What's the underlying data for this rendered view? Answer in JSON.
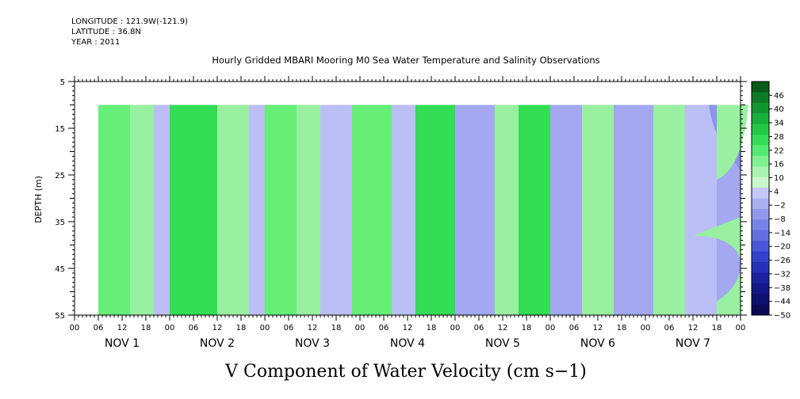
{
  "header": {
    "longitude": "LONGITUDE : 121.9W(-121.9)",
    "latitude": "LATITUDE : 36.8N",
    "year": "YEAR : 2011"
  },
  "chart_data": {
    "type": "heatmap",
    "title": "Hourly Gridded MBARI Mooring M0 Sea Water Temperature and Salinity Observations",
    "xlabel": "V Component of Water Velocity (cm s−1)",
    "ylabel": "DEPTH (m)",
    "y_ticks": [
      5,
      15,
      25,
      35,
      45,
      55
    ],
    "y_range": [
      5,
      55
    ],
    "data_depth_range": [
      10,
      55
    ],
    "x_hour_ticks": [
      "00",
      "06",
      "12",
      "18",
      "00",
      "06",
      "12",
      "18",
      "00",
      "06",
      "12",
      "18",
      "00",
      "06",
      "12",
      "18",
      "00",
      "06",
      "12",
      "18",
      "00",
      "06",
      "12",
      "18",
      "00",
      "06",
      "12",
      "18",
      "00"
    ],
    "x_day_labels": [
      "NOV 1",
      "NOV 2",
      "NOV 3",
      "NOV 4",
      "NOV 5",
      "NOV 6",
      "NOV 7"
    ],
    "x_range_days": [
      0,
      7
    ],
    "data_start_hour": 6,
    "observed_end_hour": 162,
    "colorbar_labels": [
      "46",
      "40",
      "34",
      "28",
      "22",
      "16",
      "10",
      "4",
      "−2",
      "−8",
      "−14",
      "−20",
      "−26",
      "−32",
      "−38",
      "−44",
      "−50"
    ],
    "colorbar_range": [
      -50,
      52
    ],
    "velocity_bands": [
      {
        "start_hour": 6,
        "end_hour": 14,
        "value": 10
      },
      {
        "start_hour": 14,
        "end_hour": 20,
        "value": 4
      },
      {
        "start_hour": 20,
        "end_hour": 24,
        "value": -2
      },
      {
        "start_hour": 24,
        "end_hour": 36,
        "value": 18
      },
      {
        "start_hour": 36,
        "end_hour": 44,
        "value": 6
      },
      {
        "start_hour": 44,
        "end_hour": 48,
        "value": -4
      },
      {
        "start_hour": 48,
        "end_hour": 56,
        "value": 12
      },
      {
        "start_hour": 56,
        "end_hour": 62,
        "value": 4
      },
      {
        "start_hour": 62,
        "end_hour": 70,
        "value": -4
      },
      {
        "start_hour": 70,
        "end_hour": 80,
        "value": 12
      },
      {
        "start_hour": 80,
        "end_hour": 86,
        "value": -2
      },
      {
        "start_hour": 86,
        "end_hour": 96,
        "value": 16
      },
      {
        "start_hour": 96,
        "end_hour": 106,
        "value": -6
      },
      {
        "start_hour": 106,
        "end_hour": 112,
        "value": 6
      },
      {
        "start_hour": 112,
        "end_hour": 120,
        "value": 18
      },
      {
        "start_hour": 120,
        "end_hour": 128,
        "value": -8
      },
      {
        "start_hour": 128,
        "end_hour": 136,
        "value": 8
      },
      {
        "start_hour": 136,
        "end_hour": 146,
        "value": -6
      },
      {
        "start_hour": 146,
        "end_hour": 154,
        "value": 6
      },
      {
        "start_hour": 154,
        "end_hour": 162,
        "value": -2
      }
    ],
    "extrapolated_region": {
      "start_hour": 162,
      "end_hour": 168,
      "upper_value": -6,
      "lower_value": 4,
      "corner_value": -12
    }
  }
}
